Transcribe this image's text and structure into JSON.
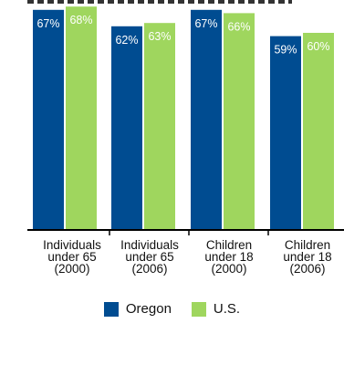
{
  "chart_data": {
    "type": "bar",
    "categories": [
      [
        "Individuals",
        "under 65",
        "(2000)"
      ],
      [
        "Individuals",
        "under 65",
        "(2006)"
      ],
      [
        "Children",
        "under 18",
        "(2000)"
      ],
      [
        "Children",
        "under 18",
        "(2006)"
      ]
    ],
    "series": [
      {
        "name": "Oregon",
        "values": [
          67,
          62,
          67,
          59
        ],
        "labels": [
          "67%",
          "62%",
          "67%",
          "59%"
        ],
        "color": "#004C91"
      },
      {
        "name": "U.S.",
        "values": [
          68,
          63,
          66,
          60
        ],
        "labels": [
          "68%",
          "63%",
          "66%",
          "60%"
        ],
        "color": "#9FD65E"
      }
    ],
    "ylim": [
      0,
      70
    ],
    "grid": false,
    "legend": "bottom",
    "label_color": "#ffffff",
    "axis_color": "#000000"
  }
}
